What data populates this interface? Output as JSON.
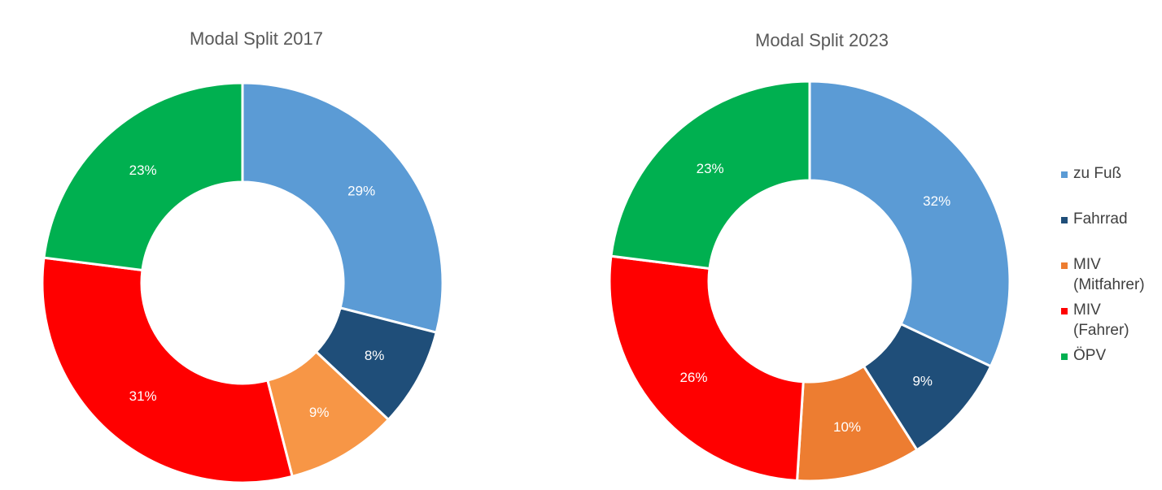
{
  "chart_data": [
    {
      "type": "pie",
      "variant": "donut",
      "title": "Modal Split 2017",
      "slices": [
        {
          "label": "zu Fuß",
          "value": 29,
          "display": "29%",
          "color": "#5B9BD5"
        },
        {
          "label": "Fahrrad",
          "value": 8,
          "display": "8%",
          "color": "#1F4E79"
        },
        {
          "label": "MIV (Mitfahrer)",
          "value": 9,
          "display": "9%",
          "color": "#F79646"
        },
        {
          "label": "MIV (Fahrer)",
          "value": 31,
          "display": "31%",
          "color": "#FF0000"
        },
        {
          "label": "ÖPV",
          "value": 23,
          "display": "23%",
          "color": "#00B050"
        }
      ]
    },
    {
      "type": "pie",
      "variant": "donut",
      "title": "Modal Split 2023",
      "slices": [
        {
          "label": "zu Fuß",
          "value": 32,
          "display": "32%",
          "color": "#5B9BD5"
        },
        {
          "label": "Fahrrad",
          "value": 9,
          "display": "9%",
          "color": "#1F4E79"
        },
        {
          "label": "MIV (Mitfahrer)",
          "value": 10,
          "display": "10%",
          "color": "#ED7D31"
        },
        {
          "label": "MIV (Fahrer)",
          "value": 26,
          "display": "26%",
          "color": "#FF0000"
        },
        {
          "label": "ÖPV",
          "value": 23,
          "display": "23%",
          "color": "#00B050"
        }
      ]
    }
  ],
  "legend": {
    "placement": "right",
    "items": [
      {
        "lines": [
          "zu Fuß"
        ],
        "color": "#5B9BD5"
      },
      {
        "lines": [
          "Fahrrad"
        ],
        "color": "#1F4E79"
      },
      {
        "lines": [
          "MIV",
          "(Mitfahrer)"
        ],
        "color": "#ED7D31"
      },
      {
        "lines": [
          "MIV",
          "(Fahrer)"
        ],
        "color": "#FF0000"
      },
      {
        "lines": [
          "ÖPV"
        ],
        "color": "#00B050"
      }
    ]
  }
}
